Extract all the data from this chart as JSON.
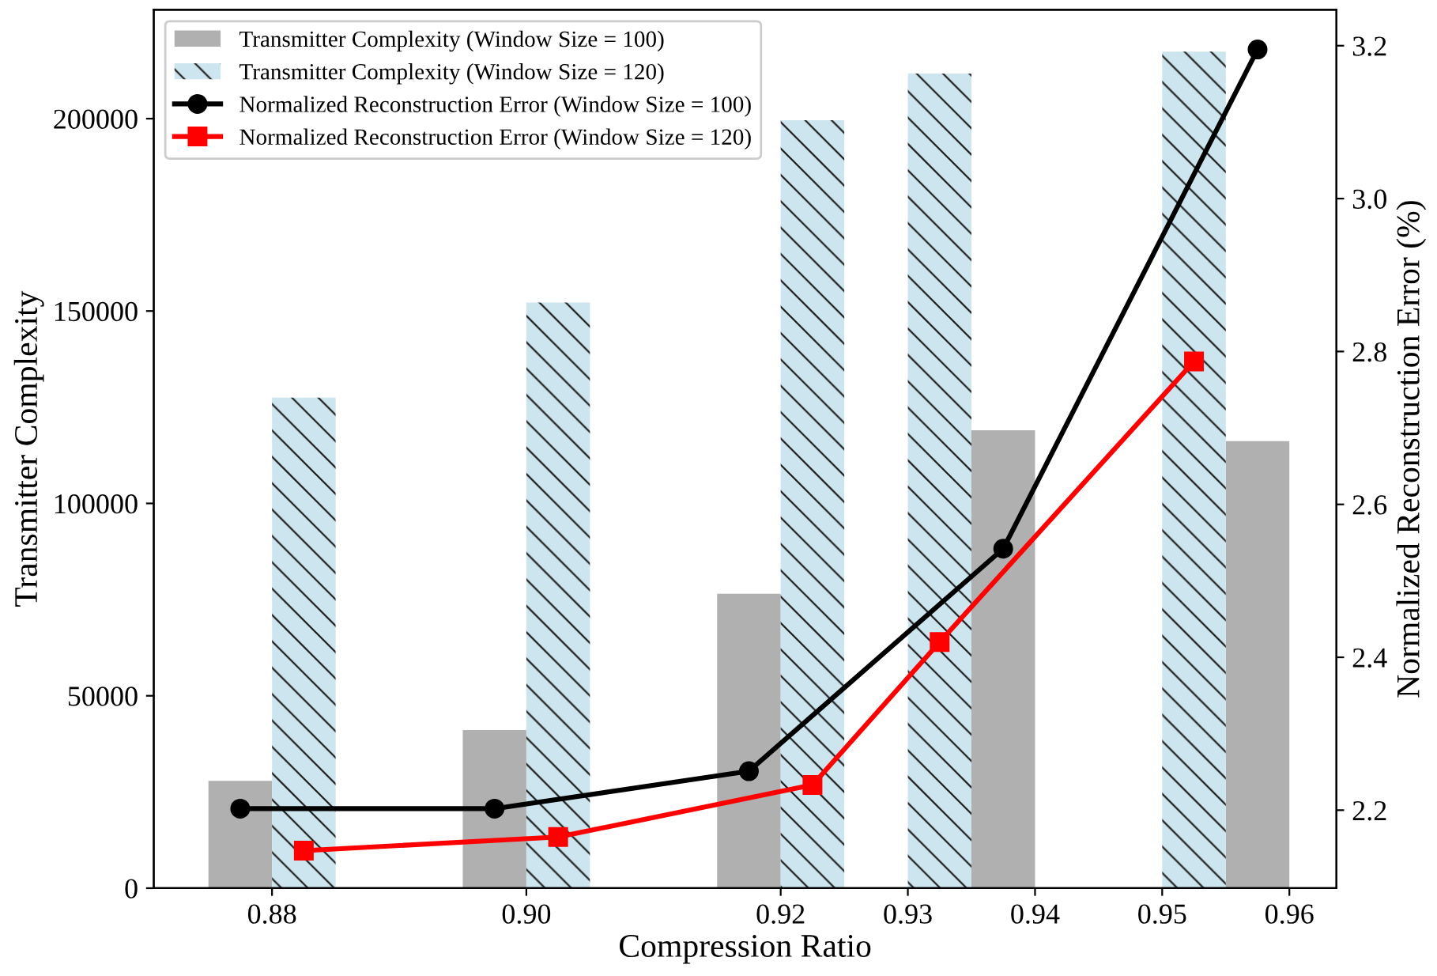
{
  "chart_data": {
    "type": "bar",
    "xlabel": "Compression Ratio",
    "ylabel": "Transmitter Complexity",
    "y2label": "Normalized Reconstruction Error (%)",
    "xlim": [
      0.8707,
      0.9637
    ],
    "xticks": [
      {
        "value": 0.88,
        "label": "0.88"
      },
      {
        "value": 0.9,
        "label": "0.90"
      },
      {
        "value": 0.92,
        "label": "0.92"
      },
      {
        "value": 0.93,
        "label": "0.93"
      },
      {
        "value": 0.94,
        "label": "0.94"
      },
      {
        "value": 0.95,
        "label": "0.95"
      },
      {
        "value": 0.96,
        "label": "0.96"
      }
    ],
    "ylim": [
      0,
      228300
    ],
    "yticks": [
      0,
      50000,
      100000,
      150000,
      200000
    ],
    "y2lim": [
      2.098,
      3.247
    ],
    "y2ticks": [
      {
        "value": 2.2,
        "label": "2.2"
      },
      {
        "value": 2.4,
        "label": "2.4"
      },
      {
        "value": 2.6,
        "label": "2.6"
      },
      {
        "value": 2.8,
        "label": "2.8"
      },
      {
        "value": 3.0,
        "label": "3.0"
      },
      {
        "value": 3.2,
        "label": "3.2"
      }
    ],
    "grid": false,
    "legend": "top left",
    "series": [
      {
        "name": "Transmitter Complexity (Window Size = 100)",
        "color": "#b0b0b0",
        "x": [
          0.8775,
          0.8975,
          0.9175,
          0.9375,
          0.9575
        ],
        "values": [
          27900,
          41100,
          76500,
          119000,
          116200
        ]
      },
      {
        "name": "Transmitter Complexity (Window Size = 120)",
        "color": "#cde5ee",
        "x": [
          0.8825,
          0.9025,
          0.9225,
          0.9325,
          0.9525
        ],
        "values": [
          127500,
          152200,
          199600,
          211700,
          217400
        ]
      },
      {
        "name": "Normalized Reconstruction Error (Window Size = 100)",
        "type": "line",
        "axis": "y2",
        "color": "#000000",
        "marker": "circle",
        "x": [
          0.8775,
          0.8975,
          0.9175,
          0.9375,
          0.9575
        ],
        "values": [
          2.202,
          2.202,
          2.251,
          2.542,
          3.195
        ]
      },
      {
        "name": "Normalized Reconstruction Error (Window Size = 120)",
        "type": "line",
        "axis": "y2",
        "color": "#ff0000",
        "marker": "square",
        "x": [
          0.8825,
          0.9025,
          0.9225,
          0.9325,
          0.9525
        ],
        "values": [
          2.147,
          2.165,
          2.233,
          2.42,
          2.787
        ]
      }
    ]
  }
}
